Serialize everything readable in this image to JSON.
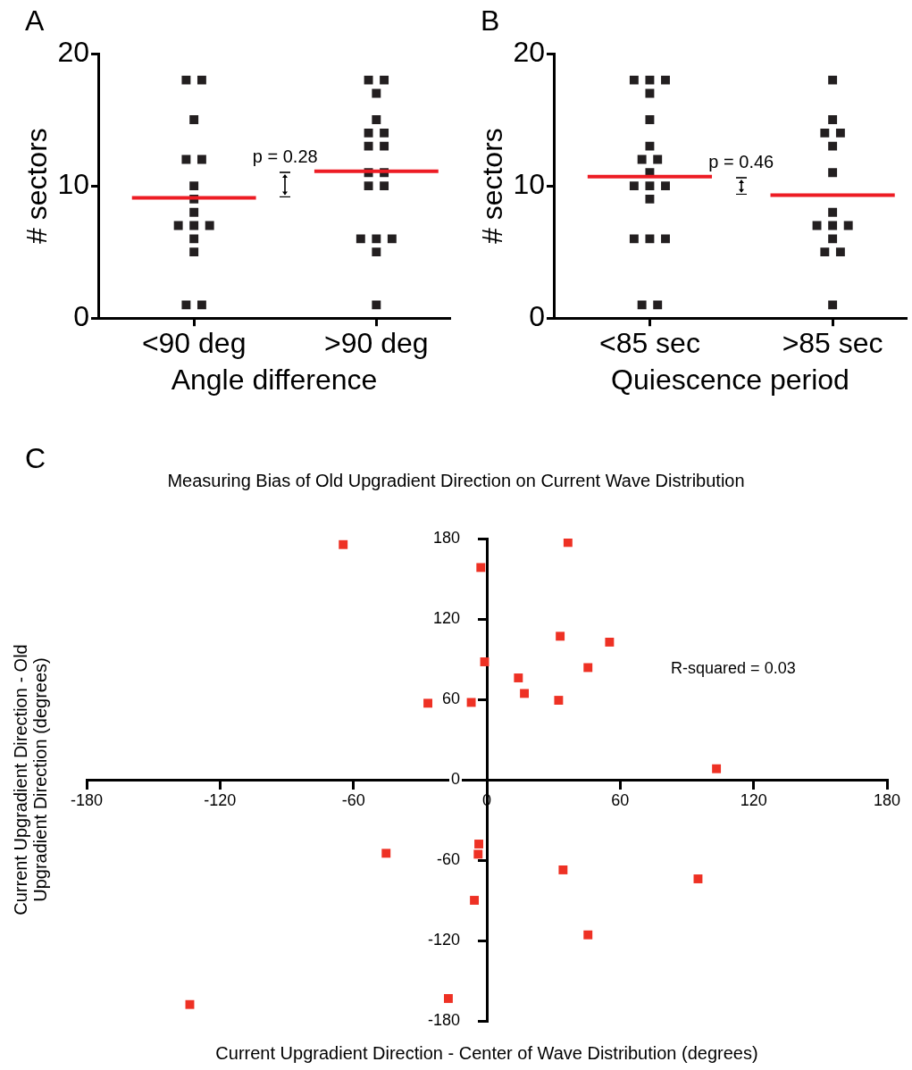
{
  "chart_data": [
    {
      "type": "scatter",
      "categories": [
        "<90 deg",
        ">90 deg"
      ],
      "xlabel": "Angle difference",
      "ylabel": "# sectors",
      "ylim": [
        0,
        20
      ],
      "yticks": [
        0,
        10,
        20
      ],
      "marker": "square",
      "annotations": [
        "A",
        "p = 0.28"
      ],
      "ref_lines": [
        {
          "axis": "y",
          "value": 9.1,
          "color": "#ed1c24"
        },
        {
          "axis": "y",
          "value": 11.1,
          "color": "#ed1c24"
        }
      ],
      "series": [
        {
          "color": "#231f20",
          "x": [
            "<90 deg",
            "<90 deg",
            "<90 deg",
            "<90 deg",
            "<90 deg",
            "<90 deg",
            "<90 deg",
            "<90 deg",
            "<90 deg",
            "<90 deg",
            "<90 deg",
            "<90 deg",
            "<90 deg",
            "<90 deg",
            "<90 deg",
            ">90 deg",
            ">90 deg",
            ">90 deg",
            ">90 deg",
            ">90 deg",
            ">90 deg",
            ">90 deg",
            ">90 deg",
            ">90 deg",
            ">90 deg",
            ">90 deg",
            ">90 deg",
            ">90 deg",
            ">90 deg",
            ">90 deg",
            ">90 deg",
            ">90 deg"
          ],
          "values": [
            18,
            18,
            15,
            12,
            12,
            10,
            9,
            8,
            7,
            7,
            7,
            6,
            5,
            1,
            1,
            18,
            18,
            17,
            15,
            14,
            14,
            13,
            13,
            11,
            11,
            10,
            10,
            6,
            6,
            6,
            5,
            1
          ]
        }
      ]
    },
    {
      "type": "scatter",
      "categories": [
        "<85 sec",
        ">85 sec"
      ],
      "xlabel": "Quiescence period",
      "ylabel": "# sectors",
      "ylim": [
        0,
        20
      ],
      "yticks": [
        0,
        10,
        20
      ],
      "marker": "square",
      "annotations": [
        "B",
        "p = 0.46"
      ],
      "ref_lines": [
        {
          "axis": "y",
          "value": 10.7,
          "color": "#ed1c24"
        },
        {
          "axis": "y",
          "value": 9.3,
          "color": "#ed1c24"
        }
      ],
      "series": [
        {
          "color": "#231f20",
          "x": [
            "<85 sec",
            "<85 sec",
            "<85 sec",
            "<85 sec",
            "<85 sec",
            "<85 sec",
            "<85 sec",
            "<85 sec",
            "<85 sec",
            "<85 sec",
            "<85 sec",
            "<85 sec",
            "<85 sec",
            "<85 sec",
            "<85 sec",
            "<85 sec",
            "<85 sec",
            "<85 sec",
            ">85 sec",
            ">85 sec",
            ">85 sec",
            ">85 sec",
            ">85 sec",
            ">85 sec",
            ">85 sec",
            ">85 sec",
            ">85 sec",
            ">85 sec",
            ">85 sec",
            ">85 sec",
            ">85 sec",
            ">85 sec"
          ],
          "values": [
            18,
            18,
            18,
            17,
            15,
            13,
            12,
            12,
            11,
            10,
            10,
            10,
            9,
            6,
            6,
            6,
            1,
            1,
            18,
            15,
            14,
            14,
            13,
            11,
            8,
            7,
            7,
            7,
            6,
            5,
            5,
            1
          ]
        }
      ]
    },
    {
      "type": "scatter",
      "title": "Measuring Bias of Old Upgradient Direction on Current Wave Distribution",
      "xlabel": "Current Upgradient Direction - Center of Wave Distribution (degrees)",
      "ylabel": "Current Upgradient Direction - Old Upgradient Direction (degrees)",
      "xlim": [
        -180,
        180
      ],
      "xticks": [
        -180,
        -120,
        -60,
        0,
        60,
        120,
        180
      ],
      "ylim": [
        -180,
        180
      ],
      "yticks": [
        -180,
        -120,
        -60,
        0,
        60,
        120,
        180
      ],
      "marker": "square",
      "annotations": [
        "C",
        "R-squared = 0.03"
      ],
      "series": [
        {
          "color": "#ee3124",
          "x": [
            -64.6,
            -2.7,
            -1,
            -26.5,
            -7,
            36.5,
            33,
            55.2,
            45.5,
            14.2,
            16.9,
            32.3,
            103.3,
            -3.6,
            -3.9,
            -45.3,
            -5.6,
            -17.3,
            -133.6,
            34.3,
            95,
            45.5
          ],
          "values": [
            175.5,
            158.4,
            88,
            57.1,
            57.7,
            177.1,
            107.1,
            102.7,
            83.7,
            76,
            64.4,
            59.3,
            8.2,
            -48,
            -55.6,
            -54.9,
            -90,
            -163.3,
            -167.8,
            -67.3,
            -74,
            -115.8
          ]
        }
      ]
    }
  ]
}
